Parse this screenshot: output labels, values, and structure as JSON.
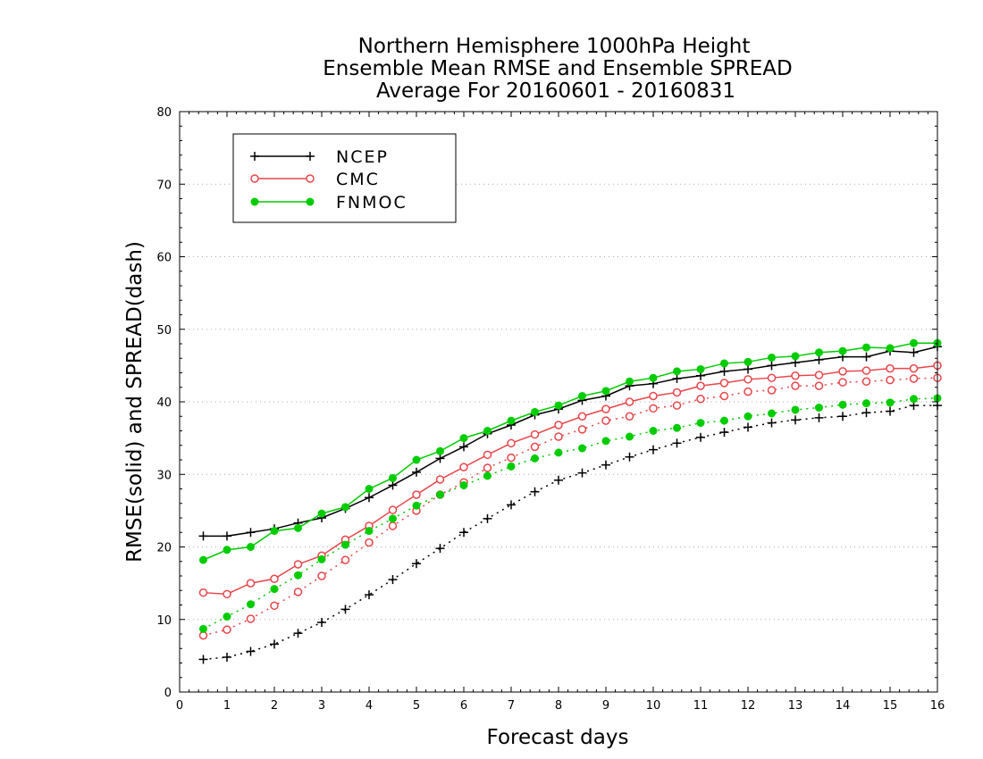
{
  "chart_data": {
    "type": "line",
    "title_lines": [
      "Northern Hemisphere 1000hPa Height",
      "Ensemble Mean RMSE and Ensemble SPREAD",
      "Average For 20160601 - 20160831"
    ],
    "xlabel": "Forecast days",
    "ylabel": "RMSE(solid) and SPREAD(dash)",
    "xlim": [
      0,
      16
    ],
    "ylim": [
      0,
      80
    ],
    "x_ticks": [
      0,
      1,
      2,
      3,
      4,
      5,
      6,
      7,
      8,
      9,
      10,
      11,
      12,
      13,
      14,
      15,
      16
    ],
    "y_ticks": [
      0,
      10,
      20,
      30,
      40,
      50,
      60,
      70,
      80
    ],
    "grid": "horizontal dotted",
    "legend_position": "top-left",
    "x": [
      0.5,
      1,
      1.5,
      2,
      2.5,
      3,
      3.5,
      4,
      4.5,
      5,
      5.5,
      6,
      6.5,
      7,
      7.5,
      8,
      8.5,
      9,
      9.5,
      10,
      10.5,
      11,
      11.5,
      12,
      12.5,
      13,
      13.5,
      14,
      14.5,
      15,
      15.5,
      16
    ],
    "series": [
      {
        "name": "NCEP",
        "color": "#000000",
        "marker": "plus",
        "rmse": [
          21.5,
          21.5,
          22.0,
          22.5,
          23.3,
          24.0,
          25.3,
          26.8,
          28.5,
          30.3,
          32.2,
          33.8,
          35.6,
          36.8,
          38.2,
          39.0,
          40.2,
          40.8,
          42.2,
          42.5,
          43.2,
          43.6,
          44.2,
          44.5,
          45.0,
          45.4,
          45.8,
          46.2,
          46.2,
          47.0,
          46.8,
          47.6
        ],
        "spread": [
          4.5,
          4.8,
          5.6,
          6.6,
          8.1,
          9.6,
          11.4,
          13.4,
          15.5,
          17.7,
          19.8,
          22.0,
          23.9,
          25.8,
          27.6,
          29.2,
          30.2,
          31.3,
          32.4,
          33.4,
          34.3,
          35.1,
          35.8,
          36.5,
          37.1,
          37.5,
          37.8,
          38.0,
          38.5,
          38.7,
          39.5,
          39.5
        ]
      },
      {
        "name": "CMC",
        "color": "#e8454a",
        "marker": "open-circle",
        "rmse": [
          13.7,
          13.5,
          15.0,
          15.6,
          17.6,
          18.8,
          21.0,
          22.9,
          25.1,
          27.2,
          29.3,
          31.0,
          32.7,
          34.3,
          35.5,
          36.8,
          38.0,
          39.0,
          40.0,
          40.8,
          41.3,
          42.2,
          42.6,
          43.1,
          43.3,
          43.6,
          43.7,
          44.2,
          44.3,
          44.6,
          44.6,
          45.0
        ],
        "spread": [
          7.8,
          8.6,
          10.1,
          11.9,
          13.8,
          16.0,
          18.2,
          20.6,
          22.9,
          25.0,
          27.2,
          28.9,
          30.9,
          32.3,
          33.8,
          35.2,
          36.2,
          37.4,
          38.0,
          39.1,
          39.5,
          40.4,
          40.8,
          41.4,
          41.6,
          42.2,
          42.2,
          42.7,
          42.8,
          43.0,
          43.2,
          43.3
        ]
      },
      {
        "name": "FNMOC",
        "color": "#00cc00",
        "marker": "filled-circle",
        "rmse": [
          18.2,
          19.6,
          20.0,
          22.2,
          22.6,
          24.6,
          25.5,
          28.0,
          29.5,
          32.0,
          33.2,
          35.0,
          36.0,
          37.4,
          38.6,
          39.5,
          40.8,
          41.5,
          42.8,
          43.3,
          44.2,
          44.5,
          45.3,
          45.5,
          46.1,
          46.3,
          46.8,
          47.0,
          47.5,
          47.4,
          48.1,
          48.1
        ],
        "spread": [
          8.7,
          10.4,
          12.1,
          14.2,
          16.1,
          18.3,
          20.3,
          22.2,
          23.9,
          25.7,
          27.2,
          28.5,
          29.8,
          31.1,
          32.2,
          33.0,
          33.6,
          34.6,
          35.2,
          36.0,
          36.4,
          37.1,
          37.4,
          38.0,
          38.4,
          38.9,
          39.2,
          39.6,
          39.8,
          39.9,
          40.4,
          40.5
        ]
      }
    ]
  }
}
